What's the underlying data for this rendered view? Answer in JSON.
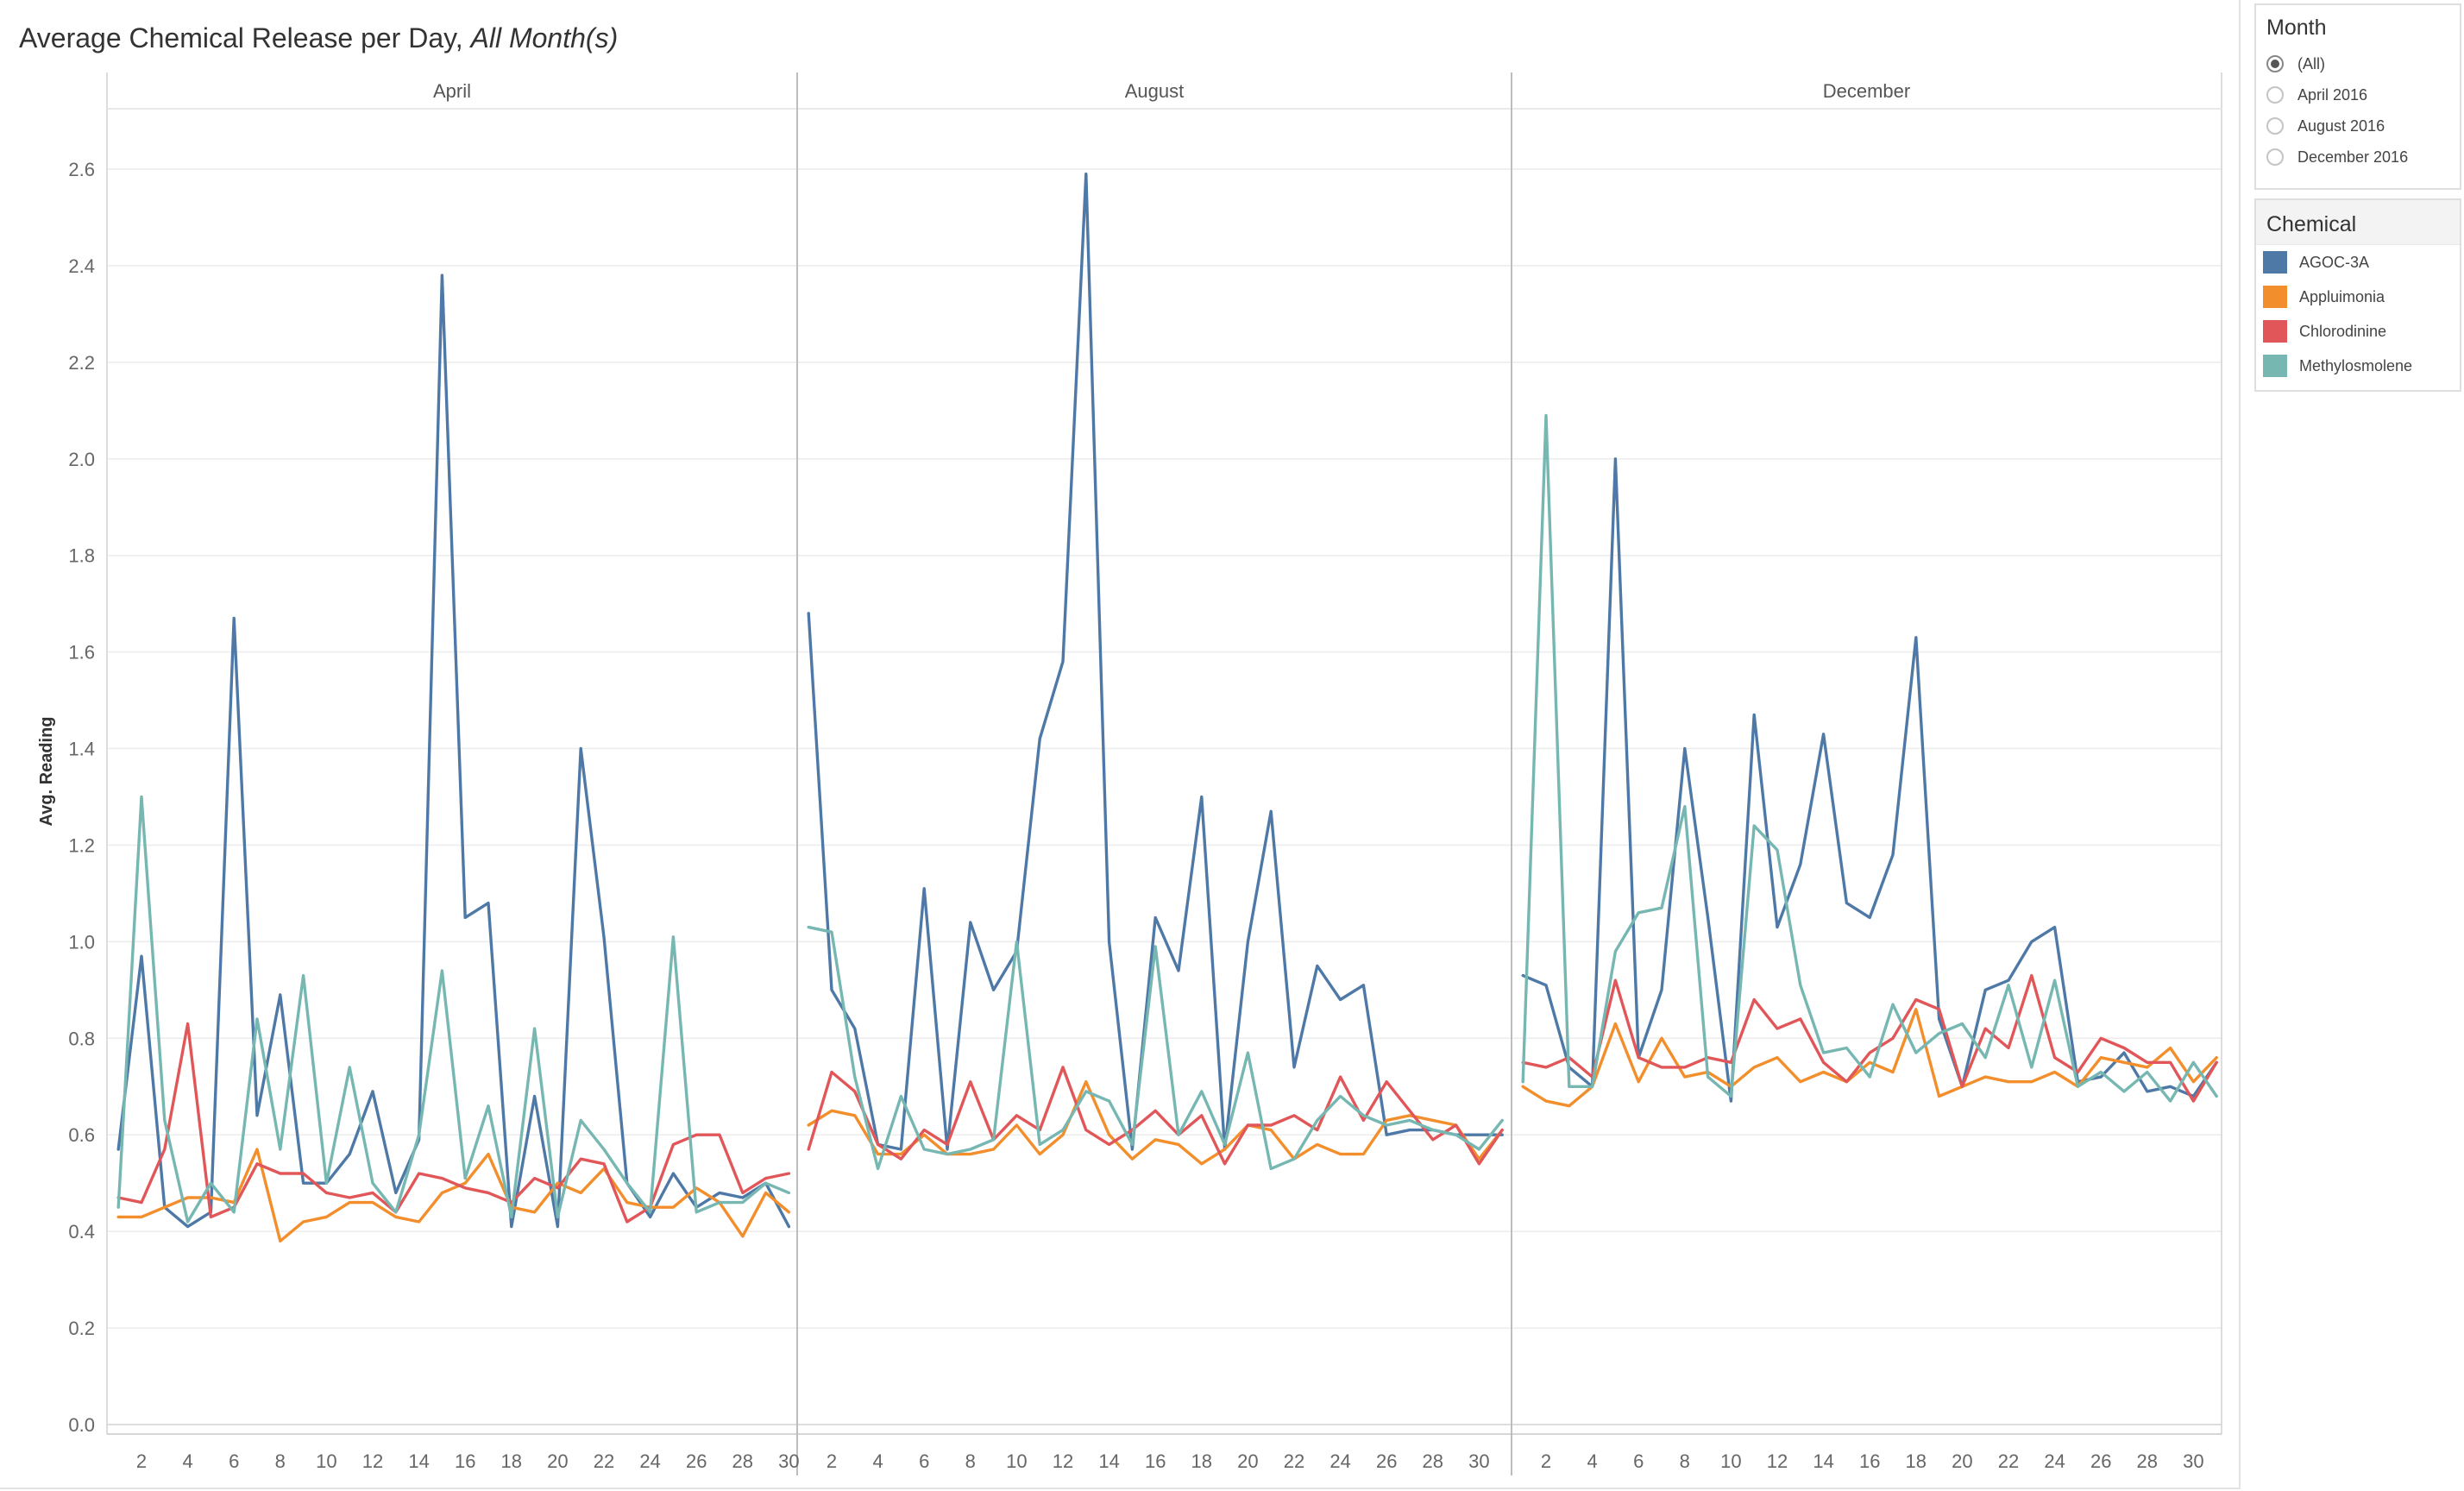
{
  "colors": {
    "AGOC-3A": "#4e79a7",
    "Appluimonia": "#f28e2b",
    "Chlorodinine": "#e15759",
    "Methylosmolene": "#76b7b2"
  },
  "chart_data": {
    "type": "line",
    "title": "Average Chemical Release per Day,",
    "title_italic": "All Month(s)",
    "ylabel": "Avg. Reading",
    "xlabel": "",
    "ylim": [
      0,
      2.72
    ],
    "yticks": [
      "0.0",
      "0.2",
      "0.4",
      "0.6",
      "0.8",
      "1.0",
      "1.2",
      "1.4",
      "1.6",
      "1.8",
      "2.0",
      "2.2",
      "2.4",
      "2.6"
    ],
    "xticks": [
      "2",
      "4",
      "6",
      "8",
      "10",
      "12",
      "14",
      "16",
      "18",
      "20",
      "22",
      "24",
      "26",
      "28",
      "30"
    ],
    "grid": true,
    "legend_position": "right",
    "panes": [
      {
        "name": "April",
        "days": [
          1,
          2,
          3,
          4,
          5,
          6,
          7,
          8,
          9,
          10,
          11,
          12,
          13,
          14,
          15,
          16,
          17,
          18,
          19,
          20,
          21,
          22,
          23,
          24,
          25,
          26,
          27,
          28,
          29,
          30
        ],
        "series": [
          {
            "name": "AGOC-3A",
            "values": [
              0.57,
              0.97,
              0.45,
              0.41,
              0.44,
              1.67,
              0.64,
              0.89,
              0.5,
              0.5,
              0.56,
              0.69,
              0.48,
              0.59,
              2.38,
              1.05,
              1.08,
              0.41,
              0.68,
              0.41,
              1.4,
              1.01,
              0.5,
              0.43,
              0.52,
              0.45,
              0.48,
              0.47,
              0.5,
              0.41
            ]
          },
          {
            "name": "Appluimonia",
            "values": [
              0.43,
              0.43,
              0.45,
              0.47,
              0.47,
              0.46,
              0.57,
              0.38,
              0.42,
              0.43,
              0.46,
              0.46,
              0.43,
              0.42,
              0.48,
              0.5,
              0.56,
              0.45,
              0.44,
              0.5,
              0.48,
              0.53,
              0.46,
              0.45,
              0.45,
              0.49,
              0.46,
              0.39,
              0.48,
              0.44
            ]
          },
          {
            "name": "Chlorodinine",
            "values": [
              0.47,
              0.46,
              0.57,
              0.83,
              0.43,
              0.45,
              0.54,
              0.52,
              0.52,
              0.48,
              0.47,
              0.48,
              0.44,
              0.52,
              0.51,
              0.49,
              0.48,
              0.46,
              0.51,
              0.49,
              0.55,
              0.54,
              0.42,
              0.45,
              0.58,
              0.6,
              0.6,
              0.48,
              0.51,
              0.52
            ]
          },
          {
            "name": "Methylosmolene",
            "values": [
              0.45,
              1.3,
              0.63,
              0.42,
              0.5,
              0.44,
              0.84,
              0.57,
              0.93,
              0.5,
              0.74,
              0.5,
              0.44,
              0.6,
              0.94,
              0.51,
              0.66,
              0.43,
              0.82,
              0.43,
              0.63,
              0.57,
              0.5,
              0.44,
              1.01,
              0.44,
              0.46,
              0.46,
              0.5,
              0.48
            ]
          }
        ]
      },
      {
        "name": "August",
        "days": [
          1,
          2,
          3,
          4,
          5,
          6,
          7,
          8,
          9,
          10,
          11,
          12,
          13,
          14,
          15,
          16,
          17,
          18,
          19,
          20,
          21,
          22,
          23,
          24,
          25,
          26,
          27,
          28,
          29,
          30,
          31
        ],
        "series": [
          {
            "name": "AGOC-3A",
            "values": [
              1.68,
              0.9,
              0.82,
              0.58,
              0.57,
              1.11,
              0.57,
              1.04,
              0.9,
              0.98,
              1.42,
              1.58,
              2.59,
              1.0,
              0.57,
              1.05,
              0.94,
              1.3,
              0.57,
              1.0,
              1.27,
              0.74,
              0.95,
              0.88,
              0.91,
              0.6,
              0.61,
              0.61,
              0.6,
              0.6,
              0.6
            ]
          },
          {
            "name": "Appluimonia",
            "values": [
              0.62,
              0.65,
              0.64,
              0.56,
              0.56,
              0.6,
              0.56,
              0.56,
              0.57,
              0.62,
              0.56,
              0.6,
              0.71,
              0.6,
              0.55,
              0.59,
              0.58,
              0.54,
              0.57,
              0.62,
              0.61,
              0.55,
              0.58,
              0.56,
              0.56,
              0.63,
              0.64,
              0.63,
              0.62,
              0.55,
              0.61
            ]
          },
          {
            "name": "Chlorodinine",
            "values": [
              0.57,
              0.73,
              0.69,
              0.58,
              0.55,
              0.61,
              0.58,
              0.71,
              0.59,
              0.64,
              0.61,
              0.74,
              0.61,
              0.58,
              0.61,
              0.65,
              0.6,
              0.64,
              0.54,
              0.62,
              0.62,
              0.64,
              0.61,
              0.72,
              0.63,
              0.71,
              0.65,
              0.59,
              0.62,
              0.54,
              0.61
            ]
          },
          {
            "name": "Methylosmolene",
            "values": [
              1.03,
              1.02,
              0.72,
              0.53,
              0.68,
              0.57,
              0.56,
              0.57,
              0.59,
              1.0,
              0.58,
              0.61,
              0.69,
              0.67,
              0.58,
              0.99,
              0.6,
              0.69,
              0.58,
              0.77,
              0.53,
              0.55,
              0.63,
              0.68,
              0.64,
              0.62,
              0.63,
              0.61,
              0.6,
              0.57,
              0.63
            ]
          }
        ]
      },
      {
        "name": "December",
        "days": [
          1,
          2,
          3,
          4,
          5,
          6,
          7,
          8,
          9,
          10,
          11,
          12,
          13,
          14,
          15,
          16,
          17,
          18,
          19,
          20,
          21,
          22,
          23,
          24,
          25,
          26,
          27,
          28,
          29,
          30,
          31
        ],
        "series": [
          {
            "name": "AGOC-3A",
            "values": [
              0.93,
              0.91,
              0.74,
              0.7,
              2.0,
              0.76,
              0.9,
              1.4,
              1.05,
              0.67,
              1.47,
              1.03,
              1.16,
              1.43,
              1.08,
              1.05,
              1.18,
              1.63,
              0.84,
              0.7,
              0.9,
              0.92,
              1.0,
              1.03,
              0.71,
              0.72,
              0.77,
              0.69,
              0.7,
              0.68,
              0.75
            ]
          },
          {
            "name": "Appluimonia",
            "values": [
              0.7,
              0.67,
              0.66,
              0.7,
              0.83,
              0.71,
              0.8,
              0.72,
              0.73,
              0.7,
              0.74,
              0.76,
              0.71,
              0.73,
              0.71,
              0.75,
              0.73,
              0.86,
              0.68,
              0.7,
              0.72,
              0.71,
              0.71,
              0.73,
              0.7,
              0.76,
              0.75,
              0.74,
              0.78,
              0.71,
              0.76
            ]
          },
          {
            "name": "Chlorodinine",
            "values": [
              0.75,
              0.74,
              0.76,
              0.72,
              0.92,
              0.76,
              0.74,
              0.74,
              0.76,
              0.75,
              0.88,
              0.82,
              0.84,
              0.75,
              0.71,
              0.77,
              0.8,
              0.88,
              0.86,
              0.7,
              0.82,
              0.78,
              0.93,
              0.76,
              0.73,
              0.8,
              0.78,
              0.75,
              0.75,
              0.67,
              0.75
            ]
          },
          {
            "name": "Methylosmolene",
            "values": [
              0.71,
              2.09,
              0.7,
              0.7,
              0.98,
              1.06,
              1.07,
              1.28,
              0.72,
              0.68,
              1.24,
              1.19,
              0.91,
              0.77,
              0.78,
              0.72,
              0.87,
              0.77,
              0.81,
              0.83,
              0.76,
              0.91,
              0.74,
              0.92,
              0.7,
              0.73,
              0.69,
              0.73,
              0.67,
              0.75,
              0.68
            ]
          }
        ]
      }
    ]
  },
  "filters": {
    "month": {
      "title": "Month",
      "options": [
        "(All)",
        "April 2016",
        "August 2016",
        "December 2016"
      ],
      "selected": "(All)"
    }
  },
  "legend": {
    "title": "Chemical",
    "items": [
      "AGOC-3A",
      "Appluimonia",
      "Chlorodinine",
      "Methylosmolene"
    ]
  }
}
